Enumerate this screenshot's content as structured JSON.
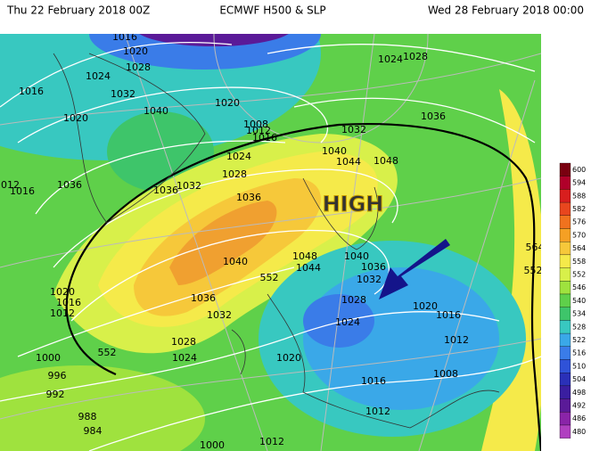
{
  "header": {
    "left": "Thu 22 February 2018 00Z",
    "center": "ECMWF H500 & SLP",
    "right": "Wed 28 February 2018 00:00"
  },
  "high_label": "HIGH",
  "isobar_labels": [
    "1016",
    "1020",
    "1028",
    "1024",
    "1016",
    "1032",
    "1020",
    "1040",
    "1020",
    "1008",
    "1012",
    "1016",
    "1024",
    "1028",
    "1036",
    "1032",
    "1040",
    "1044",
    "1048",
    "1024",
    "1028",
    "1032",
    "1036",
    "1036",
    "1012",
    "1016",
    "1036",
    "1040",
    "1048",
    "1044",
    "1040",
    "1036",
    "1032",
    "552",
    "1028",
    "1020",
    "1016",
    "1024",
    "1036",
    "1032",
    "1020",
    "1016",
    "1012",
    "1028",
    "1024",
    "552",
    "1000",
    "996",
    "992",
    "1020",
    "1012",
    "1016",
    "1008",
    "1012",
    "988",
    "984",
    "1000",
    "1012",
    "564",
    "552"
  ],
  "colorbar": {
    "labels": [
      "600",
      "594",
      "588",
      "582",
      "576",
      "570",
      "564",
      "558",
      "552",
      "546",
      "540",
      "534",
      "528",
      "522",
      "516",
      "510",
      "504",
      "498",
      "492",
      "486",
      "480"
    ],
    "colors": [
      "#7a0010",
      "#b0002a",
      "#d81e1e",
      "#e8461e",
      "#f0721e",
      "#f5a024",
      "#f6c83a",
      "#f5ea4a",
      "#d8f04a",
      "#9fe23e",
      "#5fd04a",
      "#3ec56a",
      "#38c8c0",
      "#3aa8e8",
      "#3a7ce8",
      "#2f52d8",
      "#2a30b8",
      "#3a1ea0",
      "#5a1a98",
      "#8a24a8",
      "#b040c0"
    ]
  }
}
